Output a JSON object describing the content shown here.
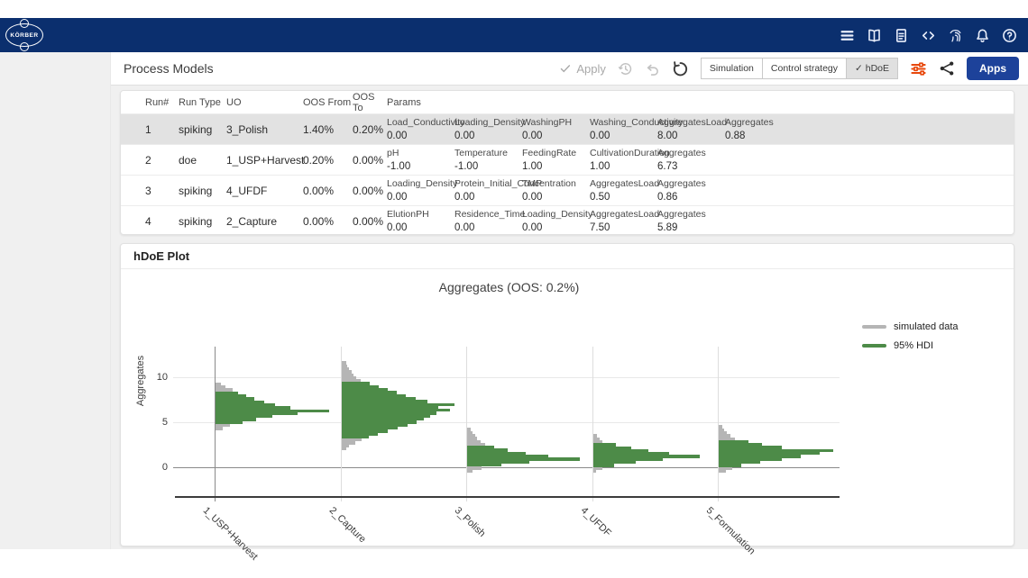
{
  "appbar": {
    "brand": "KÖRBER",
    "icons": [
      "menu-icon",
      "book-icon",
      "document-icon",
      "code-icon",
      "fingerprint-icon",
      "bell-icon",
      "help-icon"
    ]
  },
  "toolbar": {
    "title": "Process Models",
    "apply_label": "Apply",
    "view_toggles": [
      {
        "label": "Simulation",
        "selected": false
      },
      {
        "label": "Control strategy",
        "selected": false
      },
      {
        "label": "✓ hDoE",
        "selected": true
      }
    ],
    "apps_label": "Apps",
    "accent_orange": "#e8480c"
  },
  "table": {
    "headers": [
      "Run#",
      "Run Type",
      "UO",
      "OOS From",
      "OOS To",
      "Params"
    ],
    "rows": [
      {
        "run": "1",
        "run_type": "spiking",
        "uo": "3_Polish",
        "oos_from": "1.40%",
        "oos_to": "0.20%",
        "selected": true,
        "params": [
          [
            "Load_Conductivity",
            "0.00"
          ],
          [
            "Loading_Density",
            "0.00"
          ],
          [
            "WashingPH",
            "0.00"
          ],
          [
            "Washing_Conductivity",
            "0.00"
          ],
          [
            "AggregatesLoad",
            "8.00"
          ],
          [
            "Aggregates",
            "0.88"
          ]
        ]
      },
      {
        "run": "2",
        "run_type": "doe",
        "uo": "1_USP+Harvest",
        "oos_from": "0.20%",
        "oos_to": "0.00%",
        "selected": false,
        "params": [
          [
            "pH",
            "-1.00"
          ],
          [
            "Temperature",
            "-1.00"
          ],
          [
            "FeedingRate",
            "1.00"
          ],
          [
            "CultivationDuration",
            "1.00"
          ],
          [
            "Aggregates",
            "6.73"
          ]
        ]
      },
      {
        "run": "3",
        "run_type": "spiking",
        "uo": "4_UFDF",
        "oos_from": "0.00%",
        "oos_to": "0.00%",
        "selected": false,
        "params": [
          [
            "Loading_Density",
            "0.00"
          ],
          [
            "Protein_Initial_Concentration",
            "0.00"
          ],
          [
            "TMP",
            "0.00"
          ],
          [
            "AggregatesLoad",
            "0.50"
          ],
          [
            "Aggregates",
            "0.86"
          ]
        ]
      },
      {
        "run": "4",
        "run_type": "spiking",
        "uo": "2_Capture",
        "oos_from": "0.00%",
        "oos_to": "0.00%",
        "selected": false,
        "params": [
          [
            "ElutionPH",
            "0.00"
          ],
          [
            "Residence_Time",
            "0.00"
          ],
          [
            "Loading_Density",
            "0.00"
          ],
          [
            "AggregatesLoad",
            "7.50"
          ],
          [
            "Aggregates",
            "5.89"
          ]
        ]
      }
    ]
  },
  "plot": {
    "card_title": "hDoE Plot"
  },
  "chart_data": {
    "type": "bar",
    "subtype": "horizontal-histogram-per-category",
    "title": "Aggregates (OOS: 0.2%)",
    "ylabel": "Aggregates",
    "yticks": [
      0,
      5,
      10
    ],
    "ylim": [
      -2,
      13
    ],
    "grid": true,
    "legend_position": "top-right-outside",
    "categories": [
      "1_USP+Harvest",
      "2_Capture",
      "3_Polish",
      "4_UFDF",
      "5_Formulation"
    ],
    "legend": [
      {
        "label": "simulated data",
        "color": "#b5b5b5"
      },
      {
        "label": "95% HDI",
        "color": "#4d8b48"
      }
    ],
    "series": [
      {
        "name": "1_USP+Harvest",
        "hdi_range": [
          4.8,
          8.4
        ],
        "peak_value": 6.3,
        "bins": [
          [
            9.25,
            0.05,
            "s"
          ],
          [
            8.92,
            0.09,
            "s"
          ],
          [
            8.59,
            0.15,
            "s"
          ],
          [
            8.26,
            0.2,
            "g"
          ],
          [
            7.93,
            0.27,
            "g"
          ],
          [
            7.6,
            0.34,
            "g"
          ],
          [
            7.27,
            0.43,
            "g"
          ],
          [
            6.94,
            0.52,
            "g"
          ],
          [
            6.61,
            0.66,
            "g"
          ],
          [
            6.28,
            1.0,
            "g"
          ],
          [
            5.95,
            0.72,
            "g"
          ],
          [
            5.62,
            0.5,
            "g"
          ],
          [
            5.29,
            0.36,
            "g"
          ],
          [
            4.96,
            0.24,
            "g"
          ],
          [
            4.63,
            0.13,
            "s"
          ],
          [
            4.3,
            0.06,
            "s"
          ]
        ]
      },
      {
        "name": "2_Capture",
        "hdi_range": [
          3.2,
          9.4
        ],
        "peak_value": 6.8,
        "bins": [
          [
            11.6,
            0.04,
            "s"
          ],
          [
            11.27,
            0.05,
            "s"
          ],
          [
            10.94,
            0.07,
            "s"
          ],
          [
            10.61,
            0.09,
            "s"
          ],
          [
            10.28,
            0.11,
            "s"
          ],
          [
            9.95,
            0.13,
            "s"
          ],
          [
            9.62,
            0.17,
            "s"
          ],
          [
            9.29,
            0.25,
            "g"
          ],
          [
            8.96,
            0.33,
            "g"
          ],
          [
            8.63,
            0.41,
            "g"
          ],
          [
            8.3,
            0.49,
            "g"
          ],
          [
            7.97,
            0.57,
            "g"
          ],
          [
            7.64,
            0.66,
            "g"
          ],
          [
            7.31,
            0.76,
            "g"
          ],
          [
            6.98,
            1.0,
            "g"
          ],
          [
            6.65,
            0.86,
            "g"
          ],
          [
            6.32,
            0.96,
            "g"
          ],
          [
            5.99,
            0.84,
            "g"
          ],
          [
            5.66,
            0.79,
            "g"
          ],
          [
            5.33,
            0.73,
            "g"
          ],
          [
            5.0,
            0.67,
            "g"
          ],
          [
            4.67,
            0.59,
            "g"
          ],
          [
            4.34,
            0.5,
            "g"
          ],
          [
            4.01,
            0.41,
            "g"
          ],
          [
            3.68,
            0.32,
            "g"
          ],
          [
            3.35,
            0.24,
            "g"
          ],
          [
            3.02,
            0.18,
            "s"
          ],
          [
            2.69,
            0.12,
            "s"
          ],
          [
            2.36,
            0.07,
            "s"
          ],
          [
            2.03,
            0.04,
            "s"
          ]
        ]
      },
      {
        "name": "3_Polish",
        "hdi_range": [
          0.1,
          2.4
        ],
        "peak_value": 0.9,
        "bins": [
          [
            4.2,
            0.03,
            "s"
          ],
          [
            3.87,
            0.05,
            "s"
          ],
          [
            3.54,
            0.07,
            "s"
          ],
          [
            3.21,
            0.09,
            "s"
          ],
          [
            2.88,
            0.12,
            "s"
          ],
          [
            2.55,
            0.16,
            "s"
          ],
          [
            2.22,
            0.24,
            "g"
          ],
          [
            1.89,
            0.36,
            "g"
          ],
          [
            1.56,
            0.52,
            "g"
          ],
          [
            1.23,
            0.72,
            "g"
          ],
          [
            0.9,
            1.0,
            "g"
          ],
          [
            0.57,
            0.55,
            "g"
          ],
          [
            0.24,
            0.3,
            "g"
          ],
          [
            -0.09,
            0.13,
            "s"
          ],
          [
            -0.42,
            0.05,
            "s"
          ]
        ]
      },
      {
        "name": "4_UFDF",
        "hdi_range": [
          0.1,
          2.7
        ],
        "peak_value": 1.2,
        "bins": [
          [
            3.5,
            0.04,
            "s"
          ],
          [
            3.17,
            0.06,
            "s"
          ],
          [
            2.84,
            0.09,
            "s"
          ],
          [
            2.51,
            0.22,
            "g"
          ],
          [
            2.18,
            0.36,
            "g"
          ],
          [
            1.85,
            0.52,
            "g"
          ],
          [
            1.52,
            0.72,
            "g"
          ],
          [
            1.19,
            1.0,
            "g"
          ],
          [
            0.86,
            0.66,
            "g"
          ],
          [
            0.53,
            0.4,
            "g"
          ],
          [
            0.2,
            0.2,
            "g"
          ],
          [
            -0.13,
            0.09,
            "s"
          ],
          [
            -0.46,
            0.03,
            "s"
          ]
        ]
      },
      {
        "name": "5_Formulation",
        "hdi_range": [
          0.1,
          3.0
        ],
        "peak_value": 1.9,
        "bins": [
          [
            4.5,
            0.03,
            "s"
          ],
          [
            4.17,
            0.05,
            "s"
          ],
          [
            3.84,
            0.07,
            "s"
          ],
          [
            3.51,
            0.1,
            "s"
          ],
          [
            3.18,
            0.14,
            "s"
          ],
          [
            2.85,
            0.26,
            "g"
          ],
          [
            2.52,
            0.38,
            "g"
          ],
          [
            2.19,
            0.55,
            "g"
          ],
          [
            1.86,
            1.0,
            "g"
          ],
          [
            1.53,
            0.88,
            "g"
          ],
          [
            1.2,
            0.72,
            "g"
          ],
          [
            0.87,
            0.55,
            "g"
          ],
          [
            0.54,
            0.36,
            "g"
          ],
          [
            0.21,
            0.2,
            "g"
          ],
          [
            -0.12,
            0.12,
            "s"
          ],
          [
            -0.45,
            0.06,
            "s"
          ]
        ]
      }
    ]
  }
}
